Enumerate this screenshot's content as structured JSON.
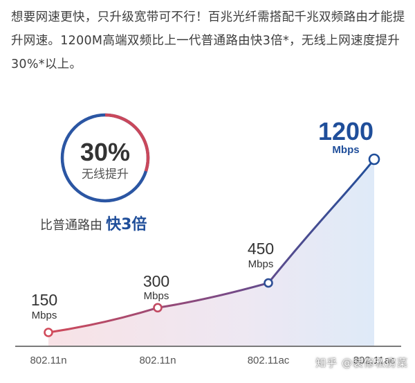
{
  "intro_text": "想要网速更快，只升级宽带可不行！百兆光纤需搭配千兆双频路由才能提升网速。1200M高端双频比上一代普通路由快3倍*，无线上网速度提升30%*以上。",
  "badge": {
    "percent": "30%",
    "caption": "无线提升",
    "ring_fraction": 0.3
  },
  "comparison": {
    "prefix": "比普通路由",
    "emphasis": "快3倍"
  },
  "watermark": "知乎 @装修私房菜",
  "colors": {
    "line_start": "#d14a5a",
    "line_end": "#1f4e9a",
    "blue": "#1f4e9a",
    "red": "#d14a5a",
    "gray": "#555555"
  },
  "chart_data": {
    "type": "line",
    "categories": [
      "802.11n",
      "802.11n",
      "802.11ac",
      "802.11ac"
    ],
    "values": [
      150,
      300,
      450,
      1200
    ],
    "value_labels": [
      "150",
      "300",
      "450",
      "1200"
    ],
    "unit": "Mbps",
    "title": "",
    "xlabel": "",
    "ylabel": "",
    "grid": false,
    "legend": "none"
  }
}
